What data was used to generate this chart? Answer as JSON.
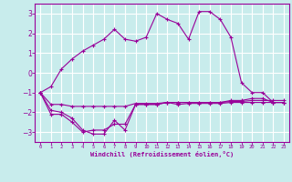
{
  "background_color": "#c8ecec",
  "line_color": "#990099",
  "grid_color": "#ffffff",
  "xlabel": "Windchill (Refroidissement éolien,°C)",
  "xlabel_color": "#990099",
  "tick_color": "#990099",
  "xlim": [
    -0.5,
    23.5
  ],
  "ylim": [
    -3.5,
    3.5
  ],
  "yticks": [
    -3,
    -2,
    -1,
    0,
    1,
    2,
    3
  ],
  "xticks": [
    0,
    1,
    2,
    3,
    4,
    5,
    6,
    7,
    8,
    9,
    10,
    11,
    12,
    13,
    14,
    15,
    16,
    17,
    18,
    19,
    20,
    21,
    22,
    23
  ],
  "line1_x": [
    0,
    1,
    2,
    3,
    4,
    5,
    6,
    7,
    8,
    9,
    10,
    11,
    12,
    13,
    14,
    15,
    16,
    17,
    18,
    19,
    20,
    21,
    22,
    23
  ],
  "line1_y": [
    -1.0,
    -0.7,
    0.2,
    0.7,
    1.1,
    1.4,
    1.7,
    2.2,
    1.7,
    1.6,
    1.8,
    3.0,
    2.7,
    2.5,
    1.7,
    3.1,
    3.1,
    2.7,
    1.8,
    -0.5,
    -1.0,
    -1.0,
    -1.5,
    -1.5
  ],
  "line2_x": [
    0,
    1,
    2,
    3,
    4,
    5,
    6,
    7,
    8,
    9,
    10,
    11,
    12,
    13,
    14,
    15,
    16,
    17,
    18,
    19,
    20,
    21,
    22,
    23
  ],
  "line2_y": [
    -1.0,
    -2.1,
    -2.1,
    -2.5,
    -3.0,
    -2.9,
    -2.9,
    -2.6,
    -2.6,
    -1.6,
    -1.6,
    -1.6,
    -1.5,
    -1.6,
    -1.55,
    -1.55,
    -1.55,
    -1.55,
    -1.5,
    -1.5,
    -1.5,
    -1.5,
    -1.5,
    -1.5
  ],
  "line3_x": [
    0,
    1,
    2,
    3,
    4,
    5,
    6,
    7,
    8,
    9,
    10,
    11,
    12,
    13,
    14,
    15,
    16,
    17,
    18,
    19,
    20,
    21,
    22,
    23
  ],
  "line3_y": [
    -1.0,
    -1.9,
    -2.0,
    -2.3,
    -2.9,
    -3.1,
    -3.1,
    -2.4,
    -2.9,
    -1.6,
    -1.6,
    -1.6,
    -1.5,
    -1.5,
    -1.5,
    -1.5,
    -1.5,
    -1.5,
    -1.4,
    -1.4,
    -1.3,
    -1.3,
    -1.5,
    -1.5
  ],
  "line4_x": [
    0,
    1,
    2,
    3,
    4,
    5,
    6,
    7,
    8,
    9,
    10,
    11,
    12,
    13,
    14,
    15,
    16,
    17,
    18,
    19,
    20,
    21,
    22,
    23
  ],
  "line4_y": [
    -1.0,
    -1.6,
    -1.6,
    -1.7,
    -1.7,
    -1.7,
    -1.7,
    -1.7,
    -1.7,
    -1.55,
    -1.55,
    -1.55,
    -1.5,
    -1.5,
    -1.5,
    -1.5,
    -1.5,
    -1.5,
    -1.45,
    -1.45,
    -1.4,
    -1.4,
    -1.4,
    -1.4
  ]
}
